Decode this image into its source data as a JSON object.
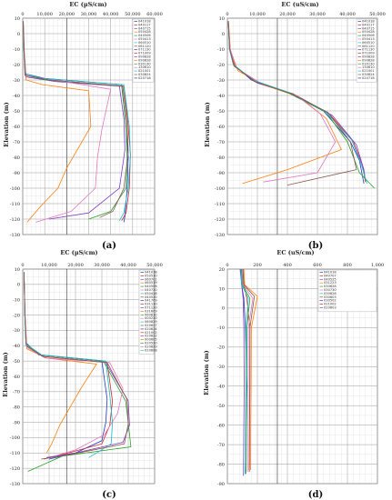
{
  "chart_data": [
    {
      "panel": "(a)",
      "type": "line",
      "xlabel": "EC (µS/cm)",
      "ylabel": "Elevation (m)",
      "x_ticks": [
        "0",
        "10,000",
        "20,000",
        "30,000",
        "40,000",
        "50,000",
        "60,000"
      ],
      "y_ticks": [
        "10",
        "0",
        "-10",
        "-20",
        "-30",
        "-40",
        "-50",
        "-60",
        "-70",
        "-80",
        "-90",
        "-100",
        "-110",
        "-120",
        "-130"
      ],
      "xlim": [
        0,
        60000
      ],
      "ylim": [
        -130,
        10
      ],
      "legend": [
        "041018",
        "040117",
        "040715",
        "050428",
        "040506",
        "050413",
        "060510",
        "061120",
        "071130",
        "071009",
        "090828",
        "090828",
        "030130",
        "130610",
        "021001",
        "030824",
        "020718"
      ],
      "series": [
        {
          "name": "041018",
          "color": "#1f3fbf",
          "x": [
            200,
            600,
            1200,
            10000,
            45000,
            47000,
            48000,
            47500,
            46500,
            46000
          ],
          "y": [
            8,
            -10,
            -26,
            -29,
            -33,
            -60,
            -80,
            -100,
            -118,
            -122
          ]
        },
        {
          "name": "040117",
          "color": "#d62728",
          "x": [
            200,
            500,
            1000,
            12000,
            46000,
            48000,
            49000,
            48500,
            47000,
            45000
          ],
          "y": [
            8,
            -10,
            -27,
            -30,
            -34,
            -60,
            -78,
            -100,
            -116,
            -121
          ]
        },
        {
          "name": "040715",
          "color": "#7f3fbf",
          "x": [
            200,
            600,
            1500,
            15000,
            44000,
            46000,
            46500,
            44000,
            30000,
            12000
          ],
          "y": [
            8,
            -10,
            -28,
            -31,
            -34,
            -55,
            -75,
            -100,
            -116,
            -120
          ]
        },
        {
          "name": "050428",
          "color": "#ff7f0e",
          "x": [
            300,
            700,
            1500,
            9000,
            30000,
            31000,
            20000,
            16000,
            8000,
            2000
          ],
          "y": [
            8,
            -12,
            -30,
            -33,
            -37,
            -60,
            -87,
            -100,
            -112,
            -122
          ]
        },
        {
          "name": "040506",
          "color": "#2ca02c",
          "x": [
            200,
            500,
            1200,
            11000,
            45000,
            47000,
            47500,
            47000,
            40000,
            30000
          ],
          "y": [
            8,
            -10,
            -27,
            -30,
            -34,
            -60,
            -80,
            -100,
            -115,
            -120
          ]
        },
        {
          "name": "050413",
          "color": "#e377c2",
          "x": [
            200,
            700,
            1300,
            14000,
            40000,
            36000,
            34000,
            33000,
            22000,
            6000
          ],
          "y": [
            8,
            -10,
            -27,
            -30,
            -36,
            -62,
            -80,
            -100,
            -115,
            -122
          ]
        },
        {
          "name": "060510",
          "color": "#17becf",
          "x": [
            200,
            500,
            1100,
            9000,
            46000,
            48500,
            49000,
            48000,
            46000,
            44000
          ],
          "y": [
            8,
            -10,
            -26,
            -29,
            -33,
            -60,
            -79,
            -100,
            -116,
            -121
          ]
        },
        {
          "name": "061120",
          "color": "#8c564b",
          "x": [
            200,
            600,
            1300,
            12000,
            45500,
            47500,
            48000,
            46000,
            41000,
            35000
          ],
          "y": [
            8,
            -10,
            -27,
            -30,
            -34,
            -58,
            -77,
            -100,
            -115,
            -119
          ]
        }
      ]
    },
    {
      "panel": "(b)",
      "type": "line",
      "xlabel": "EC (uS/cm)",
      "ylabel": "Elevation (m)",
      "x_ticks": [
        "0",
        "10,000",
        "20,000",
        "30,000",
        "40,000",
        "50,000"
      ],
      "y_ticks": [
        "10",
        "0",
        "-10",
        "-20",
        "-30",
        "-40",
        "-50",
        "-60",
        "-70",
        "-80",
        "-90",
        "-100",
        "-110",
        "-120",
        "-130"
      ],
      "xlim": [
        0,
        50000
      ],
      "ylim": [
        -130,
        10
      ],
      "legend": [
        "041018",
        "040117",
        "040715",
        "050428",
        "040506",
        "050413",
        "060510",
        "061120",
        "071130",
        "071009",
        "090828",
        "090828",
        "030130",
        "130610",
        "021001",
        "030824",
        "020718"
      ],
      "series": [
        {
          "name": "041018",
          "color": "#1f3fbf",
          "x": [
            300,
            700,
            2000,
            8000,
            20000,
            32000,
            41000,
            44000,
            45500
          ],
          "y": [
            8,
            -10,
            -20,
            -30,
            -38,
            -50,
            -70,
            -82,
            -97
          ]
        },
        {
          "name": "040117",
          "color": "#d62728",
          "x": [
            300,
            800,
            2500,
            9000,
            22000,
            34000,
            42000,
            45000,
            46000
          ],
          "y": [
            8,
            -10,
            -21,
            -31,
            -39,
            -52,
            -70,
            -85,
            -96
          ]
        },
        {
          "name": "040715",
          "color": "#7f3fbf",
          "x": [
            300,
            900,
            3000,
            10000,
            23000,
            35000,
            43000,
            45500,
            46000
          ],
          "y": [
            8,
            -10,
            -22,
            -32,
            -40,
            -53,
            -72,
            -88,
            -95
          ]
        },
        {
          "name": "050428",
          "color": "#ff7f0e",
          "x": [
            400,
            1000,
            3500,
            12000,
            24000,
            33000,
            38000,
            20000,
            5000
          ],
          "y": [
            8,
            -11,
            -24,
            -33,
            -41,
            -55,
            -75,
            -88,
            -97
          ]
        },
        {
          "name": "040506",
          "color": "#2ca02c",
          "x": [
            300,
            800,
            2200,
            9500,
            21000,
            33000,
            40000,
            44000,
            49000
          ],
          "y": [
            8,
            -10,
            -21,
            -31,
            -39,
            -51,
            -70,
            -90,
            -100
          ]
        },
        {
          "name": "050413",
          "color": "#e377c2",
          "x": [
            300,
            900,
            2800,
            11000,
            23000,
            31000,
            36000,
            30000,
            12000
          ],
          "y": [
            8,
            -10,
            -22,
            -32,
            -40,
            -52,
            -70,
            -90,
            -96
          ]
        },
        {
          "name": "060510",
          "color": "#17becf",
          "x": [
            300,
            700,
            2100,
            8500,
            20500,
            32500,
            41500,
            44500,
            46500
          ],
          "y": [
            8,
            -10,
            -20,
            -30,
            -38,
            -50,
            -69,
            -84,
            -97
          ]
        },
        {
          "name": "061120",
          "color": "#8c564b",
          "x": [
            300,
            800,
            2300,
            9200,
            21500,
            33500,
            41000,
            43000,
            20000
          ],
          "y": [
            8,
            -10,
            -21,
            -31,
            -39,
            -51,
            -70,
            -88,
            -98
          ]
        }
      ]
    },
    {
      "panel": "(c)",
      "type": "line",
      "xlabel": "EC (µS/cm)",
      "ylabel": "Elevation (m)",
      "x_ticks": [
        "0",
        "10,000",
        "20,000",
        "30,000",
        "40,000",
        "50,000"
      ],
      "y_ticks": [
        "10",
        "0",
        "-10",
        "-20",
        "-30",
        "-40",
        "-50",
        "-60",
        "-70",
        "-80",
        "-90",
        "-100",
        "-110",
        "-120",
        "-130"
      ],
      "xlim": [
        0,
        50000
      ],
      "ylim": [
        -130,
        10
      ],
      "legend": [
        "041018",
        "050510",
        "060701",
        "060519",
        "040506",
        "040720",
        "050428",
        "040520",
        "041709",
        "031130",
        "071120",
        "031609",
        "060810",
        "000220",
        "060829",
        "020627",
        "020824",
        "021002",
        "020622",
        "000605",
        "020520",
        "020829",
        "020608"
      ],
      "series": [
        {
          "name": "041018",
          "color": "#1f3fbf",
          "x": [
            500,
            800,
            1200,
            6000,
            30000,
            32000,
            31500,
            30000,
            20000,
            10000
          ],
          "y": [
            8,
            -20,
            -38,
            -46,
            -50,
            -75,
            -90,
            -102,
            -110,
            -114
          ]
        },
        {
          "name": "050510",
          "color": "#d62728",
          "x": [
            500,
            900,
            1400,
            8000,
            32000,
            34000,
            33000,
            30000,
            15000,
            8000
          ],
          "y": [
            8,
            -20,
            -40,
            -47,
            -51,
            -76,
            -92,
            -104,
            -111,
            -114
          ]
        },
        {
          "name": "060701",
          "color": "#7f3fbf",
          "x": [
            500,
            800,
            1300,
            7000,
            31000,
            40000,
            40500,
            38000,
            20000,
            9000
          ],
          "y": [
            8,
            -20,
            -39,
            -46,
            -50,
            -76,
            -92,
            -103,
            -110,
            -113
          ]
        },
        {
          "name": "060519",
          "color": "#ff7f0e",
          "x": [
            500,
            900,
            1600,
            9000,
            28000,
            22000,
            18000,
            14000,
            11000,
            9000
          ],
          "y": [
            8,
            -22,
            -42,
            -48,
            -52,
            -68,
            -80,
            -92,
            -104,
            -110
          ]
        },
        {
          "name": "040506",
          "color": "#2ca02c",
          "x": [
            500,
            800,
            1200,
            6500,
            30500,
            39000,
            40000,
            41000,
            15000,
            2000
          ],
          "y": [
            8,
            -20,
            -39,
            -46,
            -50,
            -76,
            -90,
            -106,
            -112,
            -122
          ]
        },
        {
          "name": "040720",
          "color": "#e377c2",
          "x": [
            500,
            900,
            1500,
            8500,
            33000,
            38000,
            36000,
            31000,
            20000,
            12000
          ],
          "y": [
            8,
            -20,
            -41,
            -48,
            -51,
            -68,
            -84,
            -98,
            -108,
            -112
          ]
        },
        {
          "name": "050428",
          "color": "#17becf",
          "x": [
            500,
            800,
            1300,
            7200,
            31500,
            33000,
            34000,
            33500,
            28000,
            25000
          ],
          "y": [
            8,
            -20,
            -39,
            -46,
            -50,
            -72,
            -90,
            -104,
            -110,
            -113
          ]
        },
        {
          "name": "040520",
          "color": "#8c564b",
          "x": [
            500,
            850,
            1350,
            7500,
            32000,
            39500,
            40000,
            38500,
            18000,
            7000
          ],
          "y": [
            8,
            -20,
            -40,
            -47,
            -51,
            -75,
            -91,
            -104,
            -111,
            -114
          ]
        }
      ]
    },
    {
      "panel": "(d)",
      "type": "line",
      "xlabel": "EC (uS/cm)",
      "ylabel": "Elevation (m)",
      "x_ticks": [
        "0",
        "200",
        "400",
        "600",
        "800",
        "1,000"
      ],
      "y_ticks": [
        "20",
        "10",
        "0",
        "-10",
        "-20",
        "-30",
        "-40",
        "-50",
        "-60",
        "-70",
        "-80",
        "-90"
      ],
      "xlim": [
        0,
        1000
      ],
      "ylim": [
        -90,
        20
      ],
      "legend": [
        "041018",
        "040707",
        "040525",
        "031223",
        "030628",
        "030730",
        "030628",
        "030603",
        "030502",
        "021002",
        "020603"
      ],
      "series": [
        {
          "name": "041018",
          "color": "#1f3fbf",
          "x": [
            90,
            95,
            110,
            120,
            130,
            125,
            120,
            118
          ],
          "y": [
            20,
            12,
            5,
            -10,
            -40,
            -60,
            -80,
            -85
          ]
        },
        {
          "name": "040707",
          "color": "#d62728",
          "x": [
            100,
            110,
            130,
            150,
            150,
            148,
            147,
            146
          ],
          "y": [
            20,
            12,
            5,
            -10,
            -40,
            -60,
            -80,
            -84
          ]
        },
        {
          "name": "040525",
          "color": "#7f3fbf",
          "x": [
            85,
            95,
            105,
            110,
            112,
            110,
            108,
            107
          ],
          "y": [
            20,
            12,
            5,
            -10,
            -40,
            -60,
            -80,
            -86
          ]
        },
        {
          "name": "031223",
          "color": "#ff7f0e",
          "x": [
            110,
            115,
            200,
            160,
            158,
            156,
            155,
            154
          ],
          "y": [
            20,
            12,
            6,
            -10,
            -40,
            -60,
            -80,
            -83
          ]
        },
        {
          "name": "030628",
          "color": "#2ca02c",
          "x": [
            95,
            100,
            150,
            130,
            128,
            126,
            124,
            123
          ],
          "y": [
            20,
            12,
            5,
            -10,
            -40,
            -60,
            -80,
            -85
          ]
        },
        {
          "name": "030730",
          "color": "#e377c2",
          "x": [
            100,
            105,
            170,
            140,
            138,
            137,
            135,
            134
          ],
          "y": [
            20,
            12,
            5,
            -10,
            -40,
            -60,
            -80,
            -84
          ]
        },
        {
          "name": "030628",
          "color": "#17becf",
          "x": [
            90,
            95,
            140,
            125,
            124,
            122,
            120,
            119
          ],
          "y": [
            20,
            12,
            5,
            -10,
            -40,
            -60,
            -80,
            -85
          ]
        },
        {
          "name": "030603",
          "color": "#8c564b",
          "x": [
            105,
            110,
            180,
            150,
            149,
            147,
            146,
            145
          ],
          "y": [
            20,
            12,
            6,
            -10,
            -40,
            -60,
            -80,
            -83
          ]
        }
      ]
    }
  ]
}
